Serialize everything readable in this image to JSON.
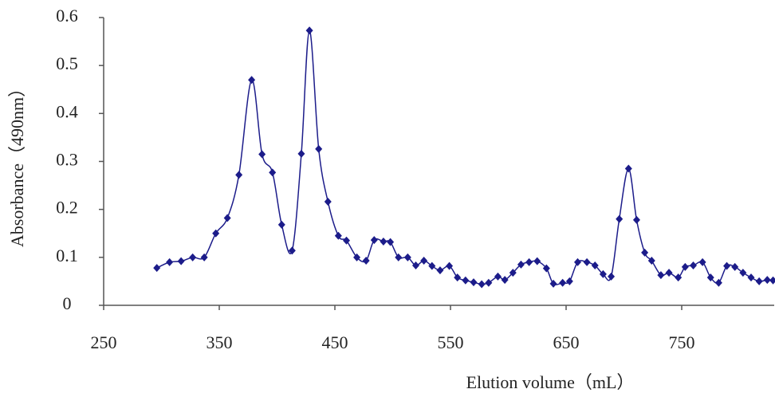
{
  "chart_data": {
    "type": "line",
    "x_label": "Elution volume（mL）",
    "y_label": "Absorbance（490nm）",
    "xlim": [
      250,
      830
    ],
    "xticks": [
      250,
      350,
      450,
      550,
      650,
      750
    ],
    "ylim": [
      0,
      0.6
    ],
    "yticks": [
      0,
      0.1,
      0.2,
      0.3,
      0.4,
      0.5,
      0.6
    ],
    "grid": false,
    "series": [
      {
        "color": "#1c1c8a",
        "x": [
          296,
          307,
          317,
          327,
          337,
          347,
          357,
          367,
          378,
          387,
          396,
          404,
          413,
          421,
          428,
          436,
          444,
          453,
          460,
          469,
          477,
          484,
          492,
          498,
          505,
          513,
          520,
          527,
          534,
          541,
          549,
          556,
          563,
          570,
          577,
          583,
          591,
          597,
          604,
          611,
          618,
          625,
          633,
          639,
          647,
          653,
          660,
          668,
          675,
          682,
          689,
          696,
          704,
          711,
          718,
          724,
          732,
          739,
          747,
          753,
          760,
          768,
          775,
          782,
          789,
          796,
          803,
          810,
          817,
          824,
          829
        ],
        "values": [
          0.078,
          0.09,
          0.092,
          0.1,
          0.1,
          0.15,
          0.182,
          0.272,
          0.47,
          0.315,
          0.277,
          0.168,
          0.114,
          0.316,
          0.573,
          0.326,
          0.216,
          0.145,
          0.135,
          0.1,
          0.093,
          0.136,
          0.133,
          0.132,
          0.1,
          0.1,
          0.083,
          0.093,
          0.082,
          0.073,
          0.082,
          0.058,
          0.052,
          0.048,
          0.044,
          0.047,
          0.06,
          0.053,
          0.068,
          0.085,
          0.09,
          0.092,
          0.077,
          0.045,
          0.047,
          0.05,
          0.09,
          0.09,
          0.083,
          0.065,
          0.06,
          0.18,
          0.285,
          0.178,
          0.11,
          0.093,
          0.063,
          0.068,
          0.058,
          0.08,
          0.083,
          0.09,
          0.058,
          0.047,
          0.082,
          0.08,
          0.068,
          0.058,
          0.05,
          0.053,
          0.052
        ]
      }
    ]
  }
}
